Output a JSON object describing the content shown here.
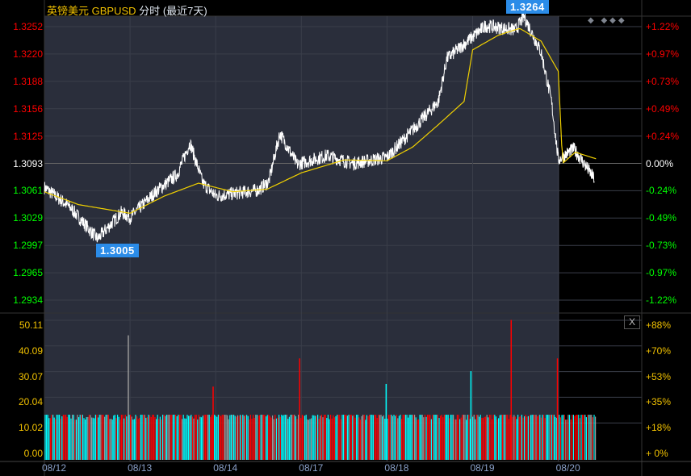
{
  "header": {
    "name": "英镑美元",
    "symbol": "GBPUSD",
    "mode": "分时",
    "range": "(最近7天)"
  },
  "markers": {
    "high": "1.3264",
    "low": "1.3005",
    "diamonds": "◆ ◆◆◆"
  },
  "close_button": "X",
  "colors": {
    "panel": "#2a2e3b",
    "price": "#ffffff",
    "ma": "#f0d000",
    "up": "#ff0000",
    "down": "#00ffff",
    "neutral": "#999999"
  },
  "chart_data": {
    "type": "line",
    "title": "英镑美元 GBPUSD 分时 (最近7天)",
    "x_labels": [
      "08/12",
      "08/13",
      "08/14",
      "08/17",
      "08/18",
      "08/19",
      "08/20"
    ],
    "price_axis": {
      "ticks": [
        "1.3252",
        "1.3220",
        "1.3188",
        "1.3156",
        "1.3125",
        "1.3093",
        "1.3061",
        "1.3029",
        "1.2997",
        "1.2965",
        "1.2934"
      ],
      "pct": [
        "+1.22%",
        "+0.97%",
        "+0.73%",
        "+0.49%",
        "+0.24%",
        "0.00%",
        "-0.24%",
        "-0.49%",
        "-0.73%",
        "-0.97%",
        "-1.22%"
      ],
      "base": 1.3093,
      "ylim": [
        1.2934,
        1.3252
      ]
    },
    "price": [
      [
        0,
        1.3065
      ],
      [
        0.3,
        1.3042
      ],
      [
        0.62,
        1.3005
      ],
      [
        0.9,
        1.3036
      ],
      [
        1.0,
        1.303
      ],
      [
        1.3,
        1.306
      ],
      [
        1.55,
        1.308
      ],
      [
        1.7,
        1.3117
      ],
      [
        1.85,
        1.307
      ],
      [
        2.0,
        1.3055
      ],
      [
        2.5,
        1.3062
      ],
      [
        2.62,
        1.3072
      ],
      [
        2.75,
        1.3128
      ],
      [
        2.95,
        1.3092
      ],
      [
        3.3,
        1.3102
      ],
      [
        3.6,
        1.3093
      ],
      [
        4.0,
        1.31
      ],
      [
        4.3,
        1.3132
      ],
      [
        4.6,
        1.3165
      ],
      [
        4.7,
        1.3215
      ],
      [
        5.0,
        1.324
      ],
      [
        5.15,
        1.3253
      ],
      [
        5.5,
        1.3248
      ],
      [
        5.6,
        1.3264
      ],
      [
        5.8,
        1.3222
      ],
      [
        5.92,
        1.3165
      ],
      [
        6.0,
        1.3097
      ],
      [
        6.18,
        1.311
      ],
      [
        6.3,
        1.3093
      ],
      [
        6.42,
        1.3075
      ]
    ],
    "ma": [
      [
        0,
        1.306
      ],
      [
        0.4,
        1.3045
      ],
      [
        1.0,
        1.3035
      ],
      [
        1.4,
        1.3055
      ],
      [
        1.8,
        1.307
      ],
      [
        2.2,
        1.306
      ],
      [
        2.6,
        1.3063
      ],
      [
        3.0,
        1.3082
      ],
      [
        3.5,
        1.3097
      ],
      [
        4.0,
        1.3096
      ],
      [
        4.3,
        1.3112
      ],
      [
        4.6,
        1.3138
      ],
      [
        4.9,
        1.3165
      ],
      [
        5.0,
        1.3225
      ],
      [
        5.3,
        1.3242
      ],
      [
        5.55,
        1.325
      ],
      [
        5.8,
        1.3235
      ],
      [
        6.0,
        1.32
      ],
      [
        6.05,
        1.3093
      ],
      [
        6.2,
        1.3106
      ],
      [
        6.45,
        1.3098
      ]
    ],
    "volume_axis": {
      "ticks": [
        "50.11",
        "40.09",
        "30.07",
        "20.04",
        "10.02",
        "0.00"
      ],
      "pct": [
        "+88%",
        "+70%",
        "+53%",
        "+35%",
        "+18%",
        "+ 0%"
      ],
      "ylim": [
        0,
        50.11
      ]
    },
    "volume_base": 17,
    "volume_spikes": [
      [
        0.98,
        48,
        "n"
      ],
      [
        1.97,
        28,
        "u"
      ],
      [
        2.98,
        39,
        "u"
      ],
      [
        3.99,
        29,
        "d"
      ],
      [
        4.98,
        34,
        "d"
      ],
      [
        5.45,
        54,
        "u"
      ],
      [
        5.99,
        39,
        "u"
      ]
    ]
  }
}
